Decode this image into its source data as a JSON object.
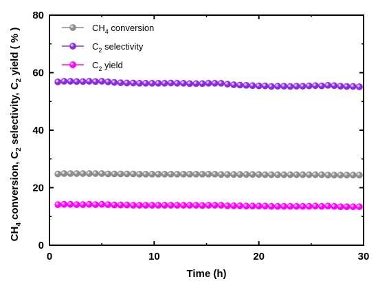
{
  "chart_data": {
    "type": "line",
    "title": "",
    "xlabel": "Time (h)",
    "ylabel": {
      "parts": [
        "CH",
        "4",
        " conversion, C",
        "2",
        " selectivity, C",
        "2",
        " yield ( % )"
      ]
    },
    "xlim": [
      0,
      30
    ],
    "ylim": [
      0,
      80
    ],
    "xticks": [
      0,
      10,
      20,
      30
    ],
    "yticks": [
      0,
      20,
      40,
      60,
      80
    ],
    "grid": false,
    "legend_position": "top-left",
    "x": [
      0.8,
      1.4,
      2.0,
      2.6,
      3.2,
      3.8,
      4.4,
      5.0,
      5.6,
      6.2,
      6.8,
      7.4,
      8.0,
      8.6,
      9.2,
      9.8,
      10.4,
      11.0,
      11.6,
      12.2,
      12.8,
      13.4,
      14.0,
      14.6,
      15.2,
      15.8,
      16.4,
      17.0,
      17.6,
      18.2,
      18.8,
      19.4,
      20.0,
      20.6,
      21.2,
      21.8,
      22.4,
      23.0,
      23.6,
      24.2,
      24.8,
      25.4,
      26.0,
      26.6,
      27.2,
      27.8,
      28.4,
      29.0,
      29.6
    ],
    "series": [
      {
        "name_parts": [
          "CH",
          "4",
          " conversion"
        ],
        "color": "#8c8c8c",
        "values": [
          24.8,
          24.9,
          24.9,
          24.9,
          24.9,
          24.9,
          24.9,
          24.9,
          24.8,
          24.8,
          24.8,
          24.8,
          24.8,
          24.7,
          24.7,
          24.7,
          24.7,
          24.7,
          24.7,
          24.7,
          24.7,
          24.7,
          24.7,
          24.7,
          24.7,
          24.7,
          24.6,
          24.6,
          24.6,
          24.6,
          24.6,
          24.6,
          24.6,
          24.5,
          24.5,
          24.5,
          24.5,
          24.5,
          24.5,
          24.5,
          24.5,
          24.5,
          24.5,
          24.4,
          24.4,
          24.4,
          24.4,
          24.4,
          24.4
        ]
      },
      {
        "name_parts": [
          "C",
          "2",
          " selectivity"
        ],
        "color": "#8a2be2",
        "values": [
          56.8,
          57.0,
          57.0,
          56.9,
          56.9,
          57.0,
          56.9,
          57.0,
          56.8,
          56.6,
          56.5,
          56.4,
          56.4,
          56.3,
          56.3,
          56.3,
          56.3,
          56.3,
          56.4,
          56.3,
          56.3,
          56.2,
          56.2,
          56.2,
          56.3,
          56.3,
          56.3,
          56.0,
          55.8,
          55.7,
          55.6,
          55.5,
          55.4,
          55.4,
          55.2,
          55.3,
          55.3,
          55.2,
          55.3,
          55.3,
          55.4,
          55.5,
          55.4,
          55.6,
          55.5,
          55.3,
          55.2,
          55.2,
          55.1
        ]
      },
      {
        "name_parts": [
          "C",
          "2",
          " yield"
        ],
        "color": "#ff00ff",
        "values": [
          14.1,
          14.2,
          14.2,
          14.1,
          14.1,
          14.2,
          14.1,
          14.2,
          14.1,
          14.0,
          14.0,
          14.0,
          13.9,
          13.9,
          13.9,
          13.9,
          13.9,
          13.9,
          13.9,
          13.9,
          13.9,
          13.9,
          13.9,
          13.8,
          13.9,
          13.9,
          13.9,
          13.7,
          13.7,
          13.7,
          13.6,
          13.6,
          13.6,
          13.6,
          13.5,
          13.5,
          13.5,
          13.5,
          13.5,
          13.5,
          13.5,
          13.6,
          13.5,
          13.6,
          13.5,
          13.4,
          13.4,
          13.4,
          13.4
        ]
      }
    ]
  }
}
